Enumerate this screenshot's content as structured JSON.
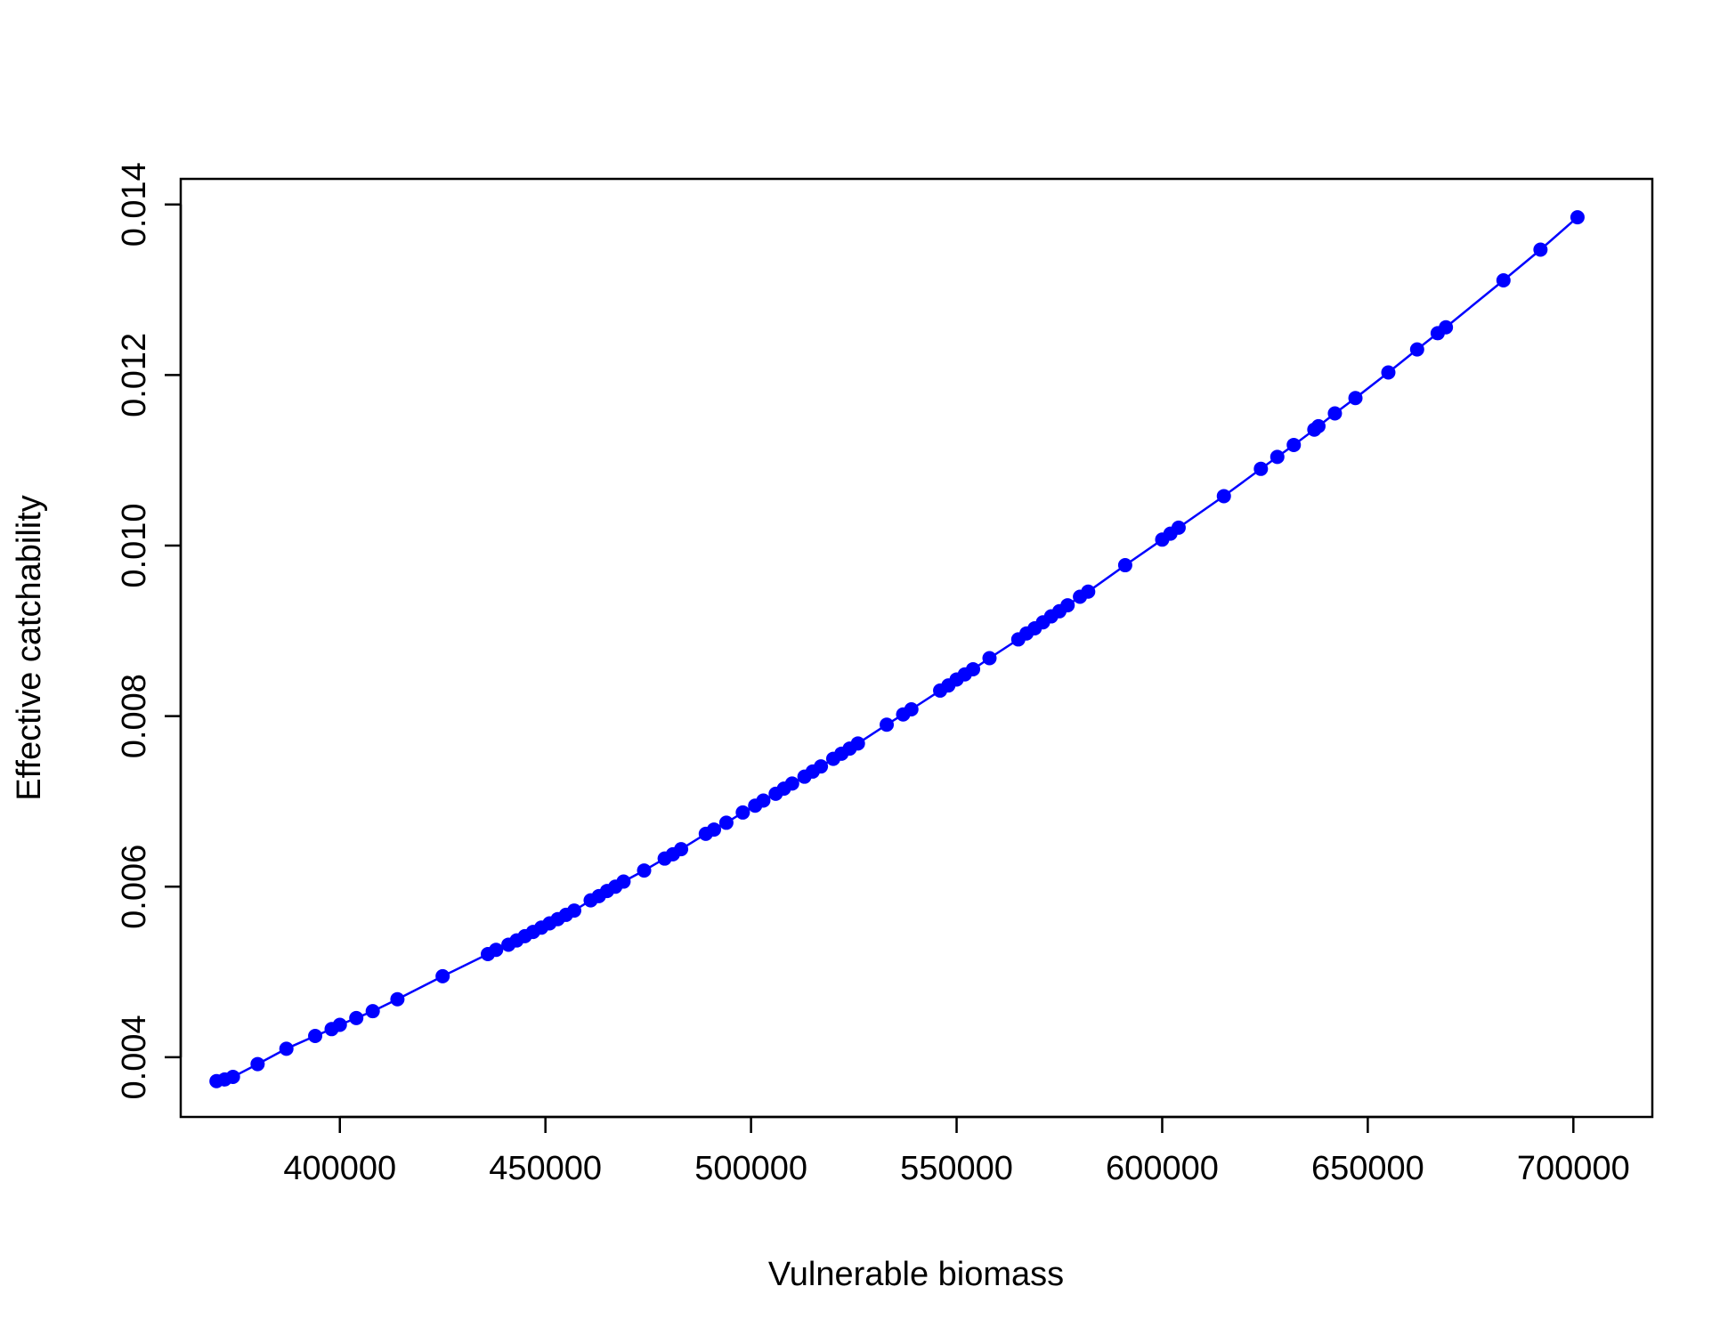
{
  "chart_data": {
    "type": "line",
    "title": "",
    "xlabel": "Vulnerable biomass",
    "ylabel": "Effective catchability",
    "xlim": [
      361300,
      719200
    ],
    "ylim": [
      0.0033,
      0.0143
    ],
    "grid": false,
    "legend": "none",
    "x_ticks": [
      400000,
      450000,
      500000,
      550000,
      600000,
      650000,
      700000
    ],
    "x_tick_labels": [
      "400000",
      "450000",
      "500000",
      "550000",
      "600000",
      "650000",
      "700000"
    ],
    "y_ticks": [
      0.004,
      0.006,
      0.008,
      0.01,
      0.012,
      0.014
    ],
    "y_tick_labels": [
      "0.004",
      "0.006",
      "0.008",
      "0.010",
      "0.012",
      "0.014"
    ],
    "series_color": "#0000ff",
    "series": [
      {
        "x": [
          370000,
          372000,
          374000,
          380000,
          387000,
          394000,
          398000,
          400000,
          404000,
          408000,
          414000,
          425000,
          436000,
          438000,
          441000,
          443000,
          445000,
          447000,
          449000,
          451000,
          453000,
          455000,
          457000,
          461000,
          463000,
          465000,
          467000,
          469000,
          474000,
          479000,
          481000,
          483000,
          489000,
          491000,
          494000,
          498000,
          501000,
          503000,
          506000,
          508000,
          510000,
          513000,
          515000,
          517000,
          520000,
          522000,
          524000,
          526000,
          533000,
          537000,
          539000,
          546000,
          548000,
          550000,
          552000,
          554000,
          558000,
          565000,
          567000,
          569000,
          571000,
          573000,
          575000,
          577000,
          580000,
          582000,
          591000,
          600000,
          602000,
          604000,
          615000,
          624000,
          628000,
          632000,
          637000,
          638000,
          642000,
          647000,
          655000,
          662000,
          667000,
          669000,
          683000,
          692000,
          701000
        ],
        "y": [
          0.00372,
          0.00374,
          0.00377,
          0.00392,
          0.0041,
          0.00425,
          0.00433,
          0.00438,
          0.00446,
          0.00454,
          0.00468,
          0.00495,
          0.00521,
          0.00526,
          0.00532,
          0.00537,
          0.00542,
          0.00547,
          0.00552,
          0.00557,
          0.00562,
          0.00567,
          0.00572,
          0.00584,
          0.00589,
          0.00595,
          0.006,
          0.00606,
          0.00619,
          0.00633,
          0.00638,
          0.00644,
          0.00662,
          0.00667,
          0.00675,
          0.00687,
          0.00695,
          0.00701,
          0.00709,
          0.00715,
          0.00721,
          0.00729,
          0.00735,
          0.00741,
          0.0075,
          0.00756,
          0.00762,
          0.00768,
          0.0079,
          0.00802,
          0.00808,
          0.0083,
          0.00836,
          0.00843,
          0.00849,
          0.00855,
          0.00868,
          0.0089,
          0.00897,
          0.00903,
          0.0091,
          0.00917,
          0.00923,
          0.0093,
          0.0094,
          0.00946,
          0.00977,
          0.01007,
          0.01014,
          0.01021,
          0.01058,
          0.0109,
          0.01104,
          0.01118,
          0.01136,
          0.0114,
          0.01155,
          0.01173,
          0.01203,
          0.0123,
          0.01249,
          0.01256,
          0.01311,
          0.01347,
          0.01385
        ]
      }
    ]
  }
}
